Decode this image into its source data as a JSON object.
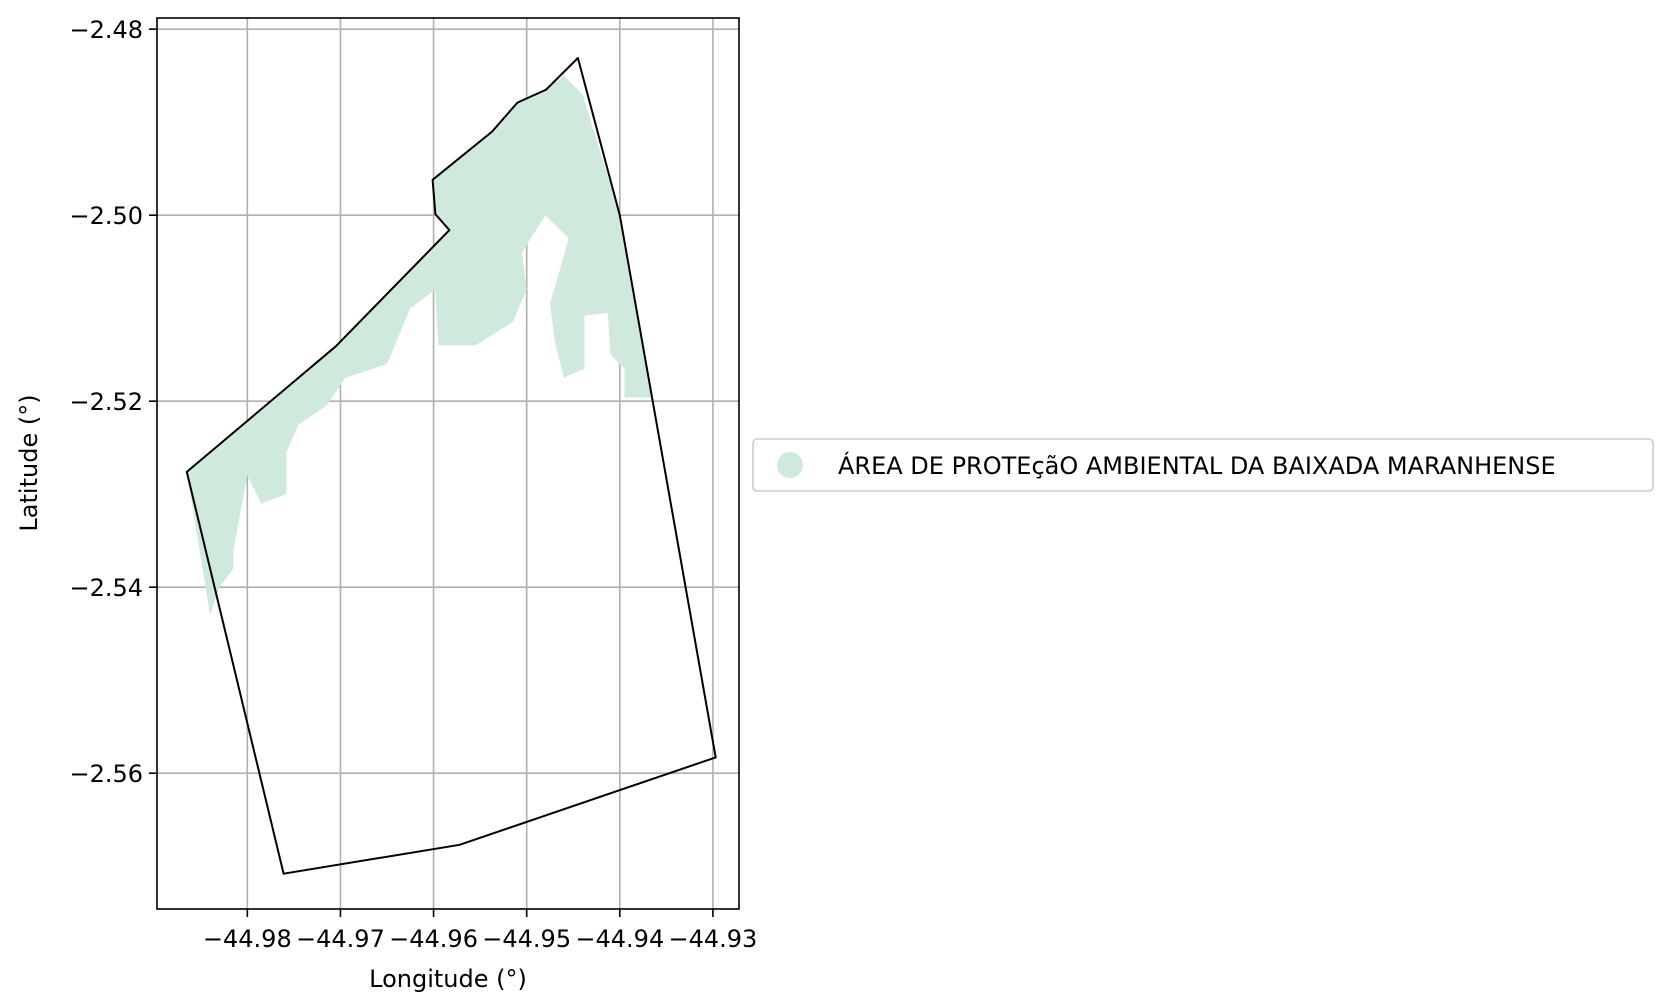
{
  "chart_data": {
    "type": "map",
    "xlabel": "Longitude (°)",
    "ylabel": "Latitude (°)",
    "xlim": [
      -44.9897,
      -44.9272
    ],
    "ylim": [
      -2.5746,
      -2.4788
    ],
    "xticks": [
      -44.98,
      -44.97,
      -44.96,
      -44.95,
      -44.94,
      -44.93
    ],
    "xtick_labels": [
      "−44.98",
      "−44.97",
      "−44.96",
      "−44.95",
      "−44.94",
      "−44.93"
    ],
    "yticks": [
      -2.48,
      -2.5,
      -2.52,
      -2.54,
      -2.56
    ],
    "ytick_labels": [
      "−2.48",
      "−2.50",
      "−2.52",
      "−2.54",
      "−2.56"
    ],
    "grid": true,
    "legend_position": "right",
    "boundary_color": "#000000",
    "area_color": "#cfeadc",
    "legend": [
      {
        "label": "ÁREA DE PROTEçãO AMBIENTAL DA BAIXADA MARANHENSE",
        "color": "#cfeadc"
      }
    ],
    "boundary": [
      [
        -44.9865,
        -2.5276
      ],
      [
        -44.9705,
        -2.5141
      ],
      [
        -44.9583,
        -2.5016
      ],
      [
        -44.9598,
        -2.4999
      ],
      [
        -44.9601,
        -2.4962
      ],
      [
        -44.9537,
        -2.491
      ],
      [
        -44.951,
        -2.4879
      ],
      [
        -44.9479,
        -2.4865
      ],
      [
        -44.9445,
        -2.4831
      ],
      [
        -44.94,
        -2.5
      ],
      [
        -44.9297,
        -2.5583
      ],
      [
        -44.9572,
        -2.5677
      ],
      [
        -44.9761,
        -2.5708
      ],
      [
        -44.9865,
        -2.5276
      ]
    ],
    "protected_area": [
      [
        -44.9865,
        -2.5276
      ],
      [
        -44.9705,
        -2.5141
      ],
      [
        -44.9583,
        -2.5016
      ],
      [
        -44.9598,
        -2.4999
      ],
      [
        -44.9601,
        -2.4962
      ],
      [
        -44.9537,
        -2.491
      ],
      [
        -44.951,
        -2.4879
      ],
      [
        -44.9479,
        -2.4865
      ],
      [
        -44.946,
        -2.485
      ],
      [
        -44.944,
        -2.487
      ],
      [
        -44.94,
        -2.5
      ],
      [
        -44.9365,
        -2.5196
      ],
      [
        -44.9395,
        -2.5196
      ],
      [
        -44.9395,
        -2.5165
      ],
      [
        -44.941,
        -2.515
      ],
      [
        -44.9413,
        -2.5105
      ],
      [
        -44.9438,
        -2.5108
      ],
      [
        -44.9438,
        -2.5165
      ],
      [
        -44.946,
        -2.5175
      ],
      [
        -44.947,
        -2.5135
      ],
      [
        -44.9475,
        -2.5095
      ],
      [
        -44.9462,
        -2.505
      ],
      [
        -44.9455,
        -2.5025
      ],
      [
        -44.948,
        -2.5
      ],
      [
        -44.9505,
        -2.504
      ],
      [
        -44.95,
        -2.508
      ],
      [
        -44.9515,
        -2.5115
      ],
      [
        -44.9555,
        -2.514
      ],
      [
        -44.9595,
        -2.514
      ],
      [
        -44.9598,
        -2.508
      ],
      [
        -44.9625,
        -2.51
      ],
      [
        -44.965,
        -2.516
      ],
      [
        -44.9695,
        -2.5175
      ],
      [
        -44.9715,
        -2.5205
      ],
      [
        -44.9745,
        -2.5225
      ],
      [
        -44.9758,
        -2.5255
      ],
      [
        -44.9758,
        -2.53
      ],
      [
        -44.9785,
        -2.531
      ],
      [
        -44.98,
        -2.528
      ],
      [
        -44.9815,
        -2.536
      ],
      [
        -44.9815,
        -2.538
      ],
      [
        -44.983,
        -2.54
      ],
      [
        -44.984,
        -2.543
      ],
      [
        -44.9865,
        -2.5276
      ]
    ]
  }
}
